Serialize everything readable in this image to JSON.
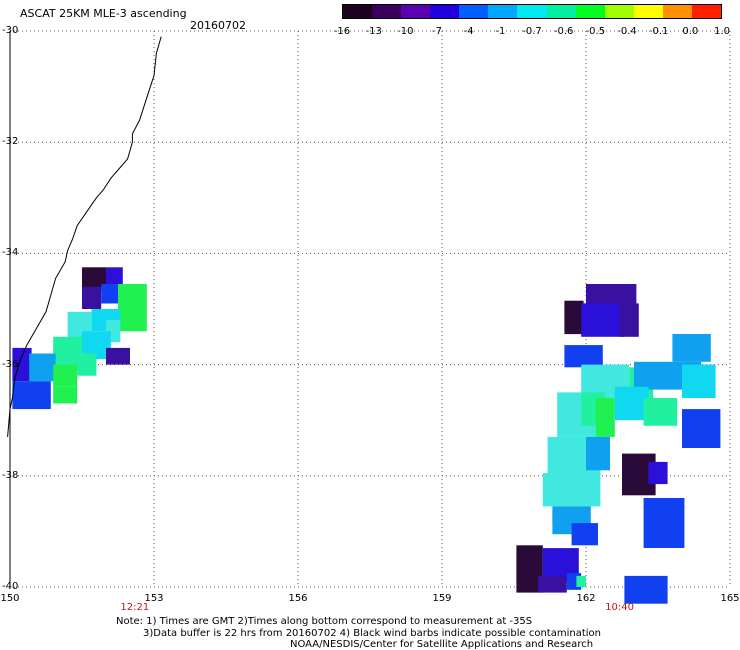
{
  "header": {
    "title": "ASCAT 25KM MLE-3 ascending",
    "date": "20160702"
  },
  "colorbar": {
    "labels": [
      "-16",
      "-13",
      "-10",
      "-7",
      "-4",
      "-1",
      "-0.7",
      "-0.6",
      "-0.5",
      "-0.4",
      "-0.1",
      "0.0",
      "1.0"
    ],
    "colors": [
      "#1e0020",
      "#3a0060",
      "#5a00b0",
      "#2000e0",
      "#0060ff",
      "#00a8ff",
      "#00e8f0",
      "#00f0a0",
      "#00ff20",
      "#a0ff00",
      "#ffff00",
      "#ff9000",
      "#ff2000"
    ]
  },
  "axes": {
    "lat_labels": [
      "-30",
      "-32",
      "-34",
      "-36",
      "-38",
      "-40"
    ],
    "lon_labels": [
      "150",
      "153",
      "156",
      "159",
      "162",
      "165"
    ],
    "lat_range": [
      -30,
      -40
    ],
    "lon_range": [
      150,
      165
    ]
  },
  "times": [
    {
      "label": "12:21",
      "lon": 152.6
    },
    {
      "label": "10:40",
      "lon": 162.7
    }
  ],
  "notes": [
    "Note: 1) Times are GMT 2)Times along bottom correspond to measurement at -35S",
    "3)Data buffer is 22 hrs from 20160702 4) Black wind barbs indicate possible contamination",
    "NOAA/NESDIS/Center for Satellite Applications and Research"
  ],
  "palette": {
    "dkpurple": "#2a0a38",
    "purple": "#3a10a0",
    "indigo": "#2a10d8",
    "blue": "#1040f0",
    "ltblue": "#10a0f0",
    "cyan": "#10d8f0",
    "ltcyan": "#40e8e0",
    "mint": "#20f0a0",
    "green": "#20f050"
  },
  "swaths": [
    {
      "lon": 151.5,
      "lat": -34.25,
      "w": 0.5,
      "h": 0.4,
      "c": "dkpurple"
    },
    {
      "lon": 152.0,
      "lat": -34.25,
      "w": 0.35,
      "h": 0.4,
      "c": "indigo"
    },
    {
      "lon": 151.5,
      "lat": -34.6,
      "w": 0.4,
      "h": 0.4,
      "c": "purple"
    },
    {
      "lon": 151.9,
      "lat": -34.55,
      "w": 0.35,
      "h": 0.35,
      "c": "blue"
    },
    {
      "lon": 152.25,
      "lat": -34.55,
      "w": 0.6,
      "h": 0.85,
      "c": "green"
    },
    {
      "lon": 151.2,
      "lat": -35.05,
      "w": 0.5,
      "h": 0.5,
      "c": "ltcyan"
    },
    {
      "lon": 151.7,
      "lat": -35.0,
      "w": 0.6,
      "h": 0.4,
      "c": "cyan"
    },
    {
      "lon": 152.0,
      "lat": -35.2,
      "w": 0.3,
      "h": 0.4,
      "c": "ltcyan"
    },
    {
      "lon": 150.9,
      "lat": -35.5,
      "w": 0.6,
      "h": 0.6,
      "c": "mint"
    },
    {
      "lon": 151.5,
      "lat": -35.4,
      "w": 0.6,
      "h": 0.5,
      "c": "cyan"
    },
    {
      "lon": 152.0,
      "lat": -35.7,
      "w": 0.5,
      "h": 0.3,
      "c": "purple"
    },
    {
      "lon": 150.05,
      "lat": -35.7,
      "w": 0.4,
      "h": 0.6,
      "c": "indigo"
    },
    {
      "lon": 150.4,
      "lat": -35.8,
      "w": 0.55,
      "h": 0.5,
      "c": "ltblue"
    },
    {
      "lon": 150.9,
      "lat": -36.0,
      "w": 0.5,
      "h": 0.4,
      "c": "green"
    },
    {
      "lon": 151.4,
      "lat": -35.8,
      "w": 0.4,
      "h": 0.4,
      "c": "mint"
    },
    {
      "lon": 150.05,
      "lat": -36.3,
      "w": 0.8,
      "h": 0.5,
      "c": "blue"
    },
    {
      "lon": 150.9,
      "lat": -36.4,
      "w": 0.5,
      "h": 0.3,
      "c": "green"
    },
    {
      "lon": 162.0,
      "lat": -34.55,
      "w": 1.05,
      "h": 0.4,
      "c": "purple"
    },
    {
      "lon": 161.55,
      "lat": -34.85,
      "w": 0.4,
      "h": 0.6,
      "c": "dkpurple"
    },
    {
      "lon": 161.9,
      "lat": -34.9,
      "w": 0.9,
      "h": 0.6,
      "c": "indigo"
    },
    {
      "lon": 162.7,
      "lat": -34.9,
      "w": 0.4,
      "h": 0.6,
      "c": "purple"
    },
    {
      "lon": 161.55,
      "lat": -35.65,
      "w": 0.8,
      "h": 0.4,
      "c": "blue"
    },
    {
      "lon": 161.9,
      "lat": -36.0,
      "w": 1.0,
      "h": 0.6,
      "c": "ltcyan"
    },
    {
      "lon": 162.9,
      "lat": -36.05,
      "w": 0.5,
      "h": 0.6,
      "c": "mint"
    },
    {
      "lon": 163.0,
      "lat": -35.95,
      "w": 1.4,
      "h": 0.5,
      "c": "ltblue"
    },
    {
      "lon": 163.8,
      "lat": -35.45,
      "w": 0.8,
      "h": 0.5,
      "c": "ltblue"
    },
    {
      "lon": 164.0,
      "lat": -36.0,
      "w": 0.7,
      "h": 0.6,
      "c": "cyan"
    },
    {
      "lon": 161.4,
      "lat": -36.5,
      "w": 0.8,
      "h": 0.8,
      "c": "ltcyan"
    },
    {
      "lon": 161.9,
      "lat": -36.5,
      "w": 0.5,
      "h": 0.6,
      "c": "mint"
    },
    {
      "lon": 162.2,
      "lat": -36.6,
      "w": 0.4,
      "h": 0.7,
      "c": "green"
    },
    {
      "lon": 162.6,
      "lat": -36.4,
      "w": 0.7,
      "h": 0.6,
      "c": "cyan"
    },
    {
      "lon": 163.2,
      "lat": -36.6,
      "w": 0.7,
      "h": 0.5,
      "c": "mint"
    },
    {
      "lon": 164.0,
      "lat": -36.8,
      "w": 0.8,
      "h": 0.7,
      "c": "blue"
    },
    {
      "lon": 161.2,
      "lat": -37.3,
      "w": 1.1,
      "h": 0.7,
      "c": "ltcyan"
    },
    {
      "lon": 162.0,
      "lat": -37.3,
      "w": 0.5,
      "h": 0.6,
      "c": "ltblue"
    },
    {
      "lon": 162.75,
      "lat": -37.6,
      "w": 0.7,
      "h": 0.75,
      "c": "dkpurple"
    },
    {
      "lon": 163.3,
      "lat": -37.75,
      "w": 0.4,
      "h": 0.4,
      "c": "indigo"
    },
    {
      "lon": 161.1,
      "lat": -37.95,
      "w": 1.2,
      "h": 0.6,
      "c": "ltcyan"
    },
    {
      "lon": 161.3,
      "lat": -38.55,
      "w": 0.8,
      "h": 0.5,
      "c": "ltblue"
    },
    {
      "lon": 163.2,
      "lat": -38.4,
      "w": 0.85,
      "h": 0.9,
      "c": "blue"
    },
    {
      "lon": 161.7,
      "lat": -38.85,
      "w": 0.55,
      "h": 0.4,
      "c": "blue"
    },
    {
      "lon": 161.3,
      "lat": -38.6,
      "w": 0.55,
      "h": 0.25,
      "c": "ltblue"
    },
    {
      "lon": 160.55,
      "lat": -39.25,
      "w": 0.55,
      "h": 0.85,
      "c": "dkpurple"
    },
    {
      "lon": 161.1,
      "lat": -39.3,
      "w": 0.75,
      "h": 0.6,
      "c": "indigo"
    },
    {
      "lon": 161.0,
      "lat": -39.8,
      "w": 0.6,
      "h": 0.3,
      "c": "purple"
    },
    {
      "lon": 161.6,
      "lat": -39.75,
      "w": 0.3,
      "h": 0.3,
      "c": "blue"
    },
    {
      "lon": 161.8,
      "lat": -39.8,
      "w": 0.2,
      "h": 0.2,
      "c": "mint"
    },
    {
      "lon": 162.8,
      "lat": -39.8,
      "w": 0.9,
      "h": 0.5,
      "c": "blue"
    }
  ],
  "coastline": [
    [
      153.15,
      -30.1
    ],
    [
      153.05,
      -30.4
    ],
    [
      153.0,
      -30.8
    ],
    [
      152.85,
      -31.2
    ],
    [
      152.7,
      -31.6
    ],
    [
      152.55,
      -31.85
    ],
    [
      152.55,
      -32.0
    ],
    [
      152.45,
      -32.3
    ],
    [
      152.25,
      -32.5
    ],
    [
      152.1,
      -32.65
    ],
    [
      151.95,
      -32.85
    ],
    [
      151.8,
      -33.0
    ],
    [
      151.6,
      -33.25
    ],
    [
      151.4,
      -33.5
    ],
    [
      151.3,
      -33.75
    ],
    [
      151.2,
      -33.95
    ],
    [
      151.15,
      -34.15
    ],
    [
      150.95,
      -34.45
    ],
    [
      150.85,
      -34.75
    ],
    [
      150.75,
      -35.05
    ],
    [
      150.55,
      -35.35
    ],
    [
      150.35,
      -35.65
    ],
    [
      150.2,
      -35.95
    ],
    [
      150.1,
      -36.25
    ],
    [
      150.05,
      -36.6
    ],
    [
      150.0,
      -36.8
    ],
    [
      149.95,
      -37.3
    ]
  ]
}
